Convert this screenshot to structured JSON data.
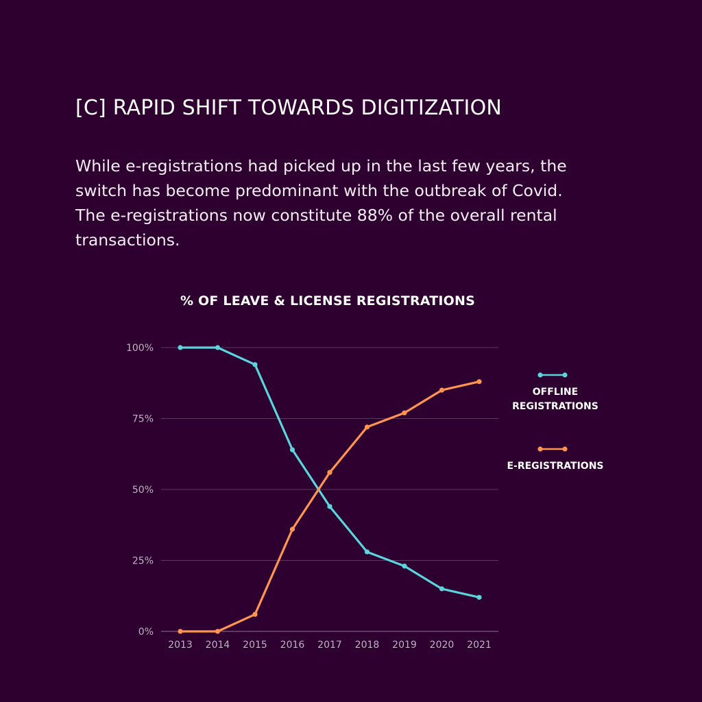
{
  "heading": "[C] RAPID SHIFT TOWARDS DIGITIZATION",
  "intro_lines": [
    "While e-registrations had picked up in the last few years, the",
    "switch has become predominant with the outbreak of Covid.",
    "The e-registrations now constitute 88% of the overall rental",
    "transactions."
  ],
  "colors": {
    "background": "#2d0030",
    "offline": "#5cd4dc",
    "online": "#ff9550",
    "grid": "#5a3a5e"
  },
  "chart_data": {
    "type": "line",
    "title": "% OF LEAVE & LICENSE REGISTRATIONS",
    "x": [
      "2013",
      "2014",
      "2015",
      "2016",
      "2017",
      "2018",
      "2019",
      "2020",
      "2021"
    ],
    "ylim": [
      0,
      100
    ],
    "yticks": [
      0,
      25,
      50,
      75,
      100
    ],
    "ytick_labels": [
      "0%",
      "25%",
      "50%",
      "75%",
      "100%"
    ],
    "grid": true,
    "legend_position": "right",
    "series": [
      {
        "name_lines": [
          "OFFLINE",
          "REGISTRATIONS"
        ],
        "color": "#5cd4dc",
        "values": [
          100,
          100,
          94,
          64,
          44,
          28,
          23,
          15,
          12
        ]
      },
      {
        "name_lines": [
          "E-REGISTRATIONS"
        ],
        "color": "#ff9550",
        "values": [
          0,
          0,
          6,
          36,
          56,
          72,
          77,
          85,
          88
        ]
      }
    ]
  }
}
